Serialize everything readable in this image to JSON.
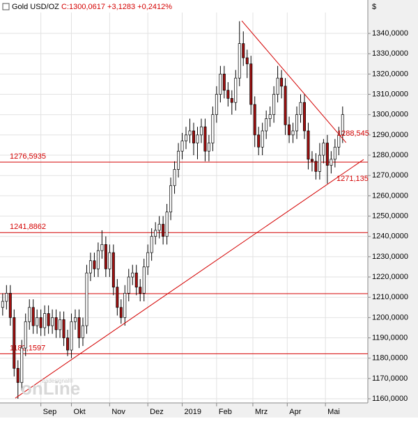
{
  "chart_data": {
    "type": "candlestick",
    "title": "Gold USD/OZ",
    "quote": "C:1300,0617 +3,1283 +0,2412%",
    "axis_unit": "$",
    "logo_small": "tradesignal®",
    "logo": "onLine",
    "up_color": "#ffffff",
    "down_color": "#a01010",
    "line_color": "#d40000",
    "grid": true,
    "xlim": [
      -0.7,
      95.6
    ],
    "xticks": [
      {
        "value": 10,
        "label": "Sep"
      },
      {
        "value": 18,
        "label": "Okt"
      },
      {
        "value": 28,
        "label": "Nov"
      },
      {
        "value": 38,
        "label": "Dez"
      },
      {
        "value": 47,
        "label": "2019"
      },
      {
        "value": 56,
        "label": "Feb"
      },
      {
        "value": 65.5,
        "label": "Mrz"
      },
      {
        "value": 74.5,
        "label": "Apr"
      },
      {
        "value": 84.5,
        "label": "Mai"
      }
    ],
    "ylim": [
      1158.3,
      1350.3
    ],
    "yticks": [
      {
        "value": 1160,
        "label": "1160,0000"
      },
      {
        "value": 1170,
        "label": "1170,0000"
      },
      {
        "value": 1180,
        "label": "1180,0000"
      },
      {
        "value": 1190,
        "label": "1190,0000"
      },
      {
        "value": 1200,
        "label": "1200,0000"
      },
      {
        "value": 1210,
        "label": "1210,0000"
      },
      {
        "value": 1220,
        "label": "1220,0000"
      },
      {
        "value": 1230,
        "label": "1230,0000"
      },
      {
        "value": 1240,
        "label": "1240,0000"
      },
      {
        "value": 1250,
        "label": "1250,0000"
      },
      {
        "value": 1260,
        "label": "1260,0000"
      },
      {
        "value": 1270,
        "label": "1270,0000"
      },
      {
        "value": 1280,
        "label": "1280,0000"
      },
      {
        "value": 1290,
        "label": "1290,0000"
      },
      {
        "value": 1300,
        "label": "1300,0000"
      },
      {
        "value": 1310,
        "label": "1310,0000"
      },
      {
        "value": 1320,
        "label": "1320,0000"
      },
      {
        "value": 1330,
        "label": "1330,0000"
      },
      {
        "value": 1340,
        "label": "1340,0000"
      }
    ],
    "open": [
      1205,
      1208,
      1212,
      1200,
      1175,
      1168,
      1185,
      1198,
      1205,
      1196,
      1200,
      1195,
      1202,
      1196,
      1200,
      1194,
      1199,
      1190,
      1184,
      1198,
      1200,
      1190,
      1196,
      1222,
      1228,
      1224,
      1233,
      1236,
      1224,
      1232,
      1215,
      1205,
      1200,
      1212,
      1220,
      1222,
      1215,
      1212,
      1225,
      1232,
      1240,
      1243,
      1246,
      1240,
      1252,
      1265,
      1273,
      1282,
      1287,
      1290,
      1292,
      1286,
      1290,
      1294,
      1282,
      1286,
      1300,
      1310,
      1320,
      1312,
      1308,
      1306,
      1318,
      1335,
      1328,
      1325,
      1305,
      1290,
      1284,
      1292,
      1298,
      1300,
      1310,
      1318,
      1314,
      1295,
      1290,
      1292,
      1300,
      1306,
      1292,
      1278,
      1277,
      1272,
      1280,
      1286,
      1275,
      1278,
      1284,
      1290
    ],
    "high": [
      1212,
      1216,
      1216,
      1204,
      1179,
      1189,
      1202,
      1209,
      1209,
      1204,
      1204,
      1206,
      1206,
      1204,
      1204,
      1203,
      1203,
      1194,
      1202,
      1204,
      1204,
      1200,
      1226,
      1232,
      1232,
      1237,
      1243,
      1240,
      1236,
      1236,
      1219,
      1209,
      1216,
      1224,
      1226,
      1226,
      1219,
      1229,
      1236,
      1244,
      1247,
      1250,
      1250,
      1256,
      1269,
      1277,
      1286,
      1291,
      1294,
      1298,
      1296,
      1294,
      1298,
      1298,
      1290,
      1304,
      1314,
      1324,
      1324,
      1316,
      1312,
      1322,
      1346,
      1341,
      1332,
      1329,
      1309,
      1294,
      1296,
      1302,
      1304,
      1314,
      1324,
      1322,
      1318,
      1299,
      1296,
      1304,
      1310,
      1310,
      1296,
      1282,
      1281,
      1286,
      1288,
      1290,
      1282,
      1288,
      1294,
      1304
    ],
    "low": [
      1201,
      1204,
      1196,
      1171,
      1160,
      1164,
      1181,
      1194,
      1192,
      1192,
      1191,
      1191,
      1192,
      1192,
      1190,
      1190,
      1186,
      1181,
      1180,
      1194,
      1185,
      1186,
      1192,
      1218,
      1220,
      1220,
      1229,
      1220,
      1220,
      1211,
      1201,
      1197,
      1196,
      1208,
      1216,
      1211,
      1208,
      1208,
      1221,
      1228,
      1236,
      1239,
      1236,
      1236,
      1248,
      1261,
      1269,
      1278,
      1283,
      1286,
      1280,
      1278,
      1286,
      1277,
      1277,
      1282,
      1296,
      1306,
      1308,
      1304,
      1300,
      1302,
      1314,
      1324,
      1318,
      1300,
      1284,
      1280,
      1280,
      1288,
      1294,
      1296,
      1306,
      1308,
      1290,
      1286,
      1286,
      1288,
      1296,
      1288,
      1273,
      1272,
      1268,
      1268,
      1276,
      1266,
      1271,
      1274,
      1280,
      1286
    ],
    "close": [
      1208,
      1212,
      1200,
      1175,
      1168,
      1185,
      1198,
      1205,
      1196,
      1200,
      1195,
      1202,
      1196,
      1200,
      1194,
      1199,
      1190,
      1184,
      1198,
      1200,
      1190,
      1196,
      1222,
      1228,
      1224,
      1233,
      1236,
      1224,
      1232,
      1215,
      1205,
      1200,
      1212,
      1220,
      1222,
      1215,
      1212,
      1225,
      1232,
      1240,
      1243,
      1246,
      1240,
      1252,
      1265,
      1273,
      1282,
      1287,
      1290,
      1292,
      1286,
      1290,
      1294,
      1282,
      1286,
      1300,
      1310,
      1320,
      1312,
      1308,
      1306,
      1318,
      1335,
      1328,
      1325,
      1305,
      1290,
      1284,
      1292,
      1298,
      1300,
      1310,
      1318,
      1314,
      1295,
      1290,
      1292,
      1300,
      1306,
      1292,
      1278,
      1277,
      1272,
      1280,
      1286,
      1275,
      1278,
      1284,
      1290,
      1300
    ],
    "levels": [
      {
        "value": 1276.5935,
        "label": "1276,5935"
      },
      {
        "value": 1241.8862,
        "label": "1241,8862"
      },
      {
        "value": 1182.1597,
        "label": "1182,1597"
      },
      {
        "value": 1211.8
      }
    ],
    "trendlines": [
      {
        "x": [
          62.6,
          89.9
        ],
        "y": [
          1346.2,
          1286.2
        ],
        "label": "1288,545"
      },
      {
        "x": [
          3.3,
          94.5
        ],
        "y": [
          1160.3,
          1277.9
        ],
        "label": "1271,135"
      }
    ]
  }
}
